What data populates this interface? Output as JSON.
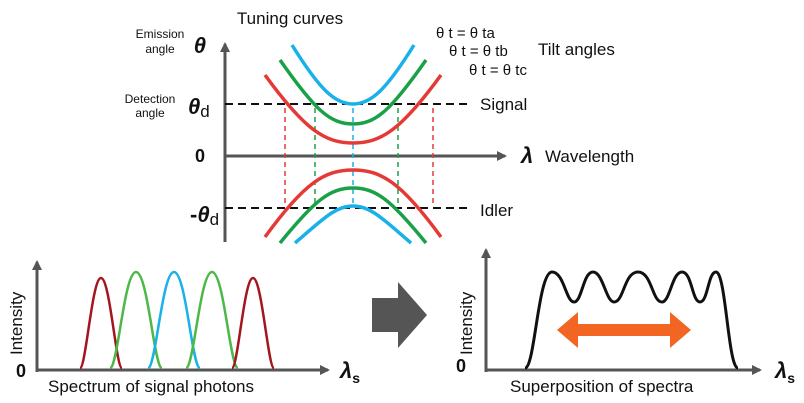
{
  "tuning": {
    "title": "Tuning curves",
    "y_axis_label_line1": "Emission",
    "y_axis_label_line2": "angle",
    "y_axis_symbol": "θ",
    "detection_label_line1": "Detection",
    "detection_label_line2": "angle",
    "theta_d_symbol": "θ",
    "theta_d_sub": "d",
    "neg_theta_d_prefix": "-",
    "zero_label": "0",
    "x_axis_symbol": "λ",
    "x_axis_label": "Wavelength",
    "signal_label": "Signal",
    "idler_label": "Idler",
    "tilt_angles_label": "Tilt angles",
    "tilt_labels": [
      "θ t = θ ta",
      "θ t = θ tb",
      "θ t = θ tc"
    ],
    "colors": {
      "a": "#1ab0e8",
      "b": "#1aa147",
      "c": "#e53935",
      "axis": "#555555",
      "line": "#111111"
    }
  },
  "spectrum_left": {
    "y_label": "Intensity",
    "zero_label": "0",
    "x_symbol": "λ",
    "x_sub": "s",
    "caption": "Spectrum of signal photons",
    "peak_colors": [
      "#a3161f",
      "#4cb848",
      "#1ab0e8",
      "#4cb848",
      "#a3161f"
    ]
  },
  "spectrum_right": {
    "y_label": "Intensity",
    "zero_label": "0",
    "x_symbol": "λ",
    "x_sub": "s",
    "caption": "Superposition of spectra",
    "arrow_color": "#f26522",
    "curve_color": "#111111"
  },
  "arrow_icon": "right-arrow-icon"
}
